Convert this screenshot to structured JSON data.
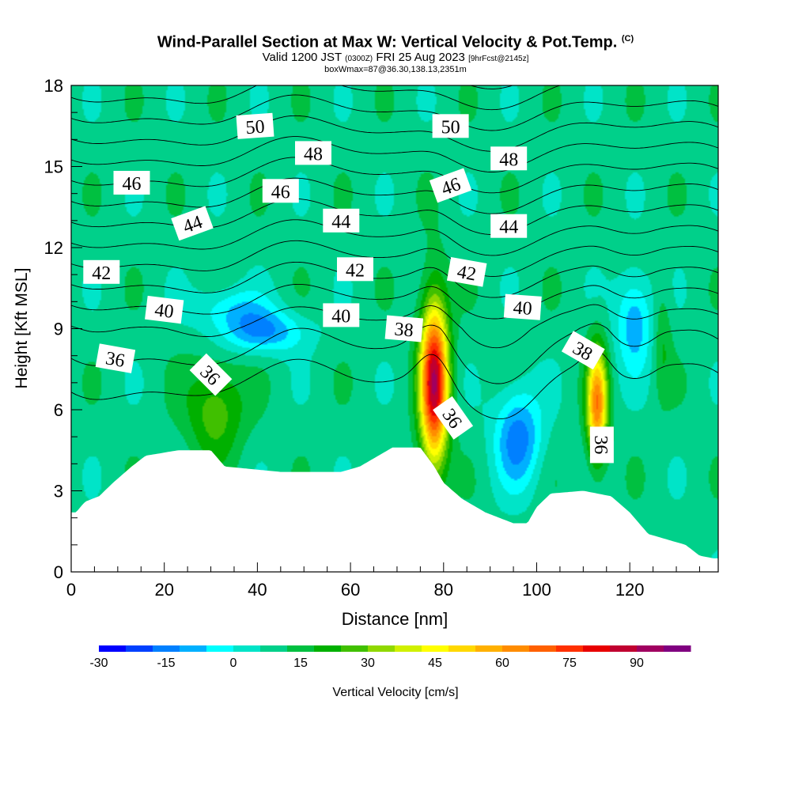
{
  "header": {
    "title_main": "Wind-Parallel Section at Max W: Vertical Velocity & Pot.Temp.",
    "title_mark": "(C)",
    "valid_prefix": "Valid 1200 JST",
    "valid_utc": "(0300Z)",
    "valid_date": "FRI 25 Aug 2023",
    "forecast_tag": "[9hrFcst@2145z]",
    "box_info": "boxWmax=87@36.30,138.13,2351m"
  },
  "chart_data": {
    "type": "heatmap",
    "xlabel": "Distance [nm]",
    "ylabel": "Height [Kft MSL]",
    "xlim": [
      0,
      139
    ],
    "ylim": [
      0,
      18
    ],
    "x_ticks": [
      0,
      20,
      40,
      60,
      80,
      100,
      120
    ],
    "y_ticks": [
      0,
      3,
      6,
      9,
      12,
      15,
      18
    ],
    "grid": false,
    "colorbar": {
      "label": "Vertical Velocity [cm/s]",
      "tick_labels": [
        -30,
        -15,
        0,
        15,
        30,
        45,
        60,
        75,
        90
      ],
      "colors": [
        "#0000ff",
        "#0040ff",
        "#0080ff",
        "#00b0ff",
        "#00ffff",
        "#00e4c8",
        "#00d08a",
        "#00c040",
        "#00b000",
        "#40c000",
        "#90d800",
        "#d0f000",
        "#ffff00",
        "#ffd800",
        "#ffb000",
        "#ff8c00",
        "#ff6000",
        "#ff3000",
        "#e80000",
        "#c00030",
        "#a00060",
        "#800080"
      ]
    },
    "terrain": [
      [
        0,
        2.2
      ],
      [
        1,
        2.2
      ],
      [
        3,
        2.6
      ],
      [
        6,
        2.8
      ],
      [
        9,
        3.3
      ],
      [
        11,
        3.6
      ],
      [
        13,
        3.9
      ],
      [
        16,
        4.3
      ],
      [
        23,
        4.5
      ],
      [
        30,
        4.5
      ],
      [
        33,
        3.9
      ],
      [
        45,
        3.7
      ],
      [
        58,
        3.7
      ],
      [
        62,
        3.9
      ],
      [
        65,
        4.2
      ],
      [
        69,
        4.6
      ],
      [
        75,
        4.6
      ],
      [
        78,
        3.9
      ],
      [
        80,
        3.3
      ],
      [
        84,
        2.7
      ],
      [
        89,
        2.2
      ],
      [
        92,
        2.0
      ],
      [
        95,
        1.8
      ],
      [
        98,
        1.8
      ],
      [
        100,
        2.4
      ],
      [
        103,
        2.9
      ],
      [
        110,
        3.0
      ],
      [
        116,
        2.8
      ],
      [
        120,
        2.2
      ],
      [
        124,
        1.4
      ],
      [
        128,
        1.2
      ],
      [
        132,
        1.0
      ],
      [
        135,
        0.6
      ],
      [
        138,
        0.5
      ],
      [
        139,
        0.5
      ]
    ],
    "features": [
      {
        "x": 78,
        "y": 7.0,
        "w": 80,
        "rx": 3.0,
        "ry": 3.0
      },
      {
        "x": 113,
        "y": 6.2,
        "w": 55,
        "rx": 2.2,
        "ry": 2.0
      },
      {
        "x": 31,
        "y": 6.0,
        "w": 20,
        "rx": 6,
        "ry": 1.8
      },
      {
        "x": 96,
        "y": 5.0,
        "w": -25,
        "rx": 5,
        "ry": 1.8
      },
      {
        "x": 41,
        "y": 8.9,
        "w": -22,
        "rx": 9,
        "ry": 0.8
      },
      {
        "x": 34,
        "y": 9.8,
        "w": -13,
        "rx": 8,
        "ry": 0.8
      },
      {
        "x": 121,
        "y": 9.3,
        "w": -20,
        "rx": 4,
        "ry": 1.8
      },
      {
        "x": 127,
        "y": 8.6,
        "w": 10,
        "rx": 2,
        "ry": 2.0
      }
    ],
    "theta_levels": [
      36,
      37,
      38,
      39,
      40,
      41,
      42,
      43,
      44,
      45,
      46,
      47,
      48,
      49,
      50,
      51,
      52
    ],
    "theta_labels": [
      {
        "text": "50",
        "x": 39.5,
        "y": 16.5,
        "angle": 4
      },
      {
        "text": "50",
        "x": 81.5,
        "y": 16.5,
        "angle": 0
      },
      {
        "text": "48",
        "x": 52,
        "y": 15.5,
        "angle": 0
      },
      {
        "text": "48",
        "x": 94,
        "y": 15.3,
        "angle": 0
      },
      {
        "text": "46",
        "x": 13,
        "y": 14.4,
        "angle": 0
      },
      {
        "text": "46",
        "x": 45,
        "y": 14.1,
        "angle": 0
      },
      {
        "text": "46",
        "x": 81.5,
        "y": 14.3,
        "angle": 20
      },
      {
        "text": "44",
        "x": 26,
        "y": 12.9,
        "angle": 20
      },
      {
        "text": "44",
        "x": 58,
        "y": 13.0,
        "angle": 0
      },
      {
        "text": "44",
        "x": 94,
        "y": 12.8,
        "angle": 0
      },
      {
        "text": "42",
        "x": 6.5,
        "y": 11.1,
        "angle": 0
      },
      {
        "text": "42",
        "x": 61,
        "y": 11.2,
        "angle": 0
      },
      {
        "text": "42",
        "x": 85,
        "y": 11.1,
        "angle": -10
      },
      {
        "text": "40",
        "x": 20,
        "y": 9.7,
        "angle": -7
      },
      {
        "text": "40",
        "x": 58,
        "y": 9.5,
        "angle": 0
      },
      {
        "text": "40",
        "x": 97,
        "y": 9.8,
        "angle": -4
      },
      {
        "text": "38",
        "x": 71.5,
        "y": 9.0,
        "angle": -5
      },
      {
        "text": "38",
        "x": 110,
        "y": 8.2,
        "angle": -30
      },
      {
        "text": "36",
        "x": 9.5,
        "y": 7.9,
        "angle": -10
      },
      {
        "text": "36",
        "x": 30,
        "y": 7.3,
        "angle": -45
      },
      {
        "text": "36",
        "x": 82,
        "y": 5.7,
        "angle": -55
      },
      {
        "text": "36",
        "x": 114,
        "y": 4.7,
        "angle": -90
      }
    ]
  }
}
